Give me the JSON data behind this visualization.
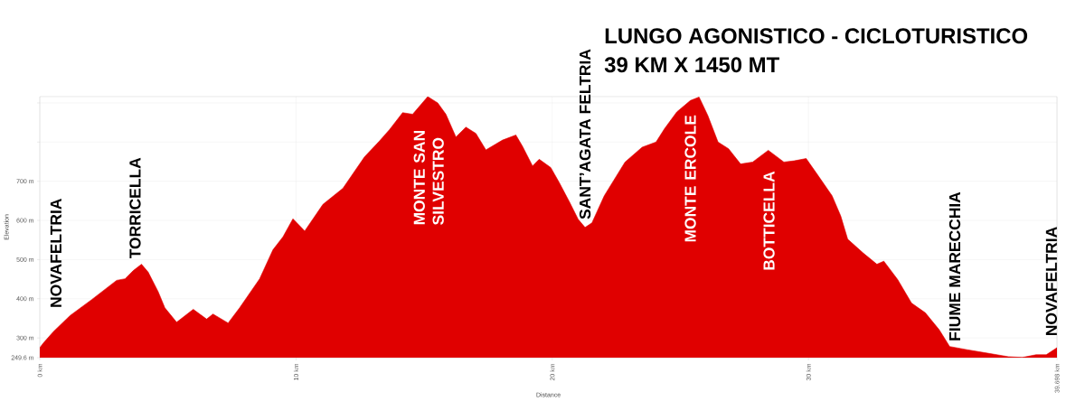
{
  "chart_data": {
    "type": "area",
    "title": "LUNGO AGONISTICO - CICLOTURISTICO",
    "subtitle": "39 KM X 1450 MT",
    "xlabel": "Distance",
    "ylabel": "Elevation",
    "color": "#e00000",
    "grid": true,
    "x": [
      0,
      0.14,
      0.53,
      1.18,
      2.03,
      3.0,
      3.33,
      3.65,
      3.97,
      4.23,
      4.62,
      4.88,
      5.34,
      5.99,
      6.51,
      6.76,
      7.35,
      7.8,
      8.58,
      9.1,
      9.49,
      9.88,
      10.34,
      11.05,
      11.83,
      12.67,
      13.26,
      13.65,
      14.16,
      14.55,
      15.14,
      15.53,
      15.85,
      16.24,
      16.63,
      17.02,
      17.41,
      18.06,
      18.58,
      18.84,
      19.23,
      19.49,
      19.94,
      20.27,
      20.68,
      21.01,
      21.28,
      21.55,
      22.03,
      22.84,
      23.51,
      24.05,
      24.38,
      24.86,
      25.39,
      25.73,
      26.07,
      26.47,
      26.88,
      27.35,
      27.82,
      28.43,
      29.04,
      29.44,
      29.91,
      30.38,
      30.92,
      31.26,
      31.53,
      32.13,
      32.67,
      32.94,
      33.48,
      34.02,
      34.56,
      35.1,
      35.51,
      36.18,
      36.99,
      37.8,
      38.34,
      38.88,
      39.28,
      39.698
    ],
    "values": [
      275,
      287,
      316,
      357,
      398,
      447,
      451,
      472,
      488,
      468,
      418,
      377,
      340,
      373,
      348,
      361,
      338,
      377,
      451,
      525,
      558,
      604,
      573,
      641,
      682,
      762,
      803,
      832,
      875,
      871,
      916,
      900,
      871,
      813,
      838,
      822,
      780,
      805,
      818,
      789,
      739,
      756,
      735,
      697,
      646,
      603,
      582,
      594,
      663,
      749,
      787,
      800,
      834,
      877,
      906,
      915,
      868,
      800,
      783,
      744,
      749,
      779,
      749,
      752,
      758,
      714,
      663,
      611,
      552,
      517,
      488,
      496,
      449,
      389,
      364,
      321,
      278,
      270,
      261,
      252,
      250,
      257,
      257,
      275
    ],
    "xlim": [
      0,
      39.698
    ],
    "ylim": [
      249.6,
      916
    ],
    "xticks": [
      {
        "value": 0,
        "label": "0 km"
      },
      {
        "value": 10,
        "label": "10 km"
      },
      {
        "value": 20,
        "label": "20 km"
      },
      {
        "value": 30,
        "label": "30 km"
      },
      {
        "value": 39.698,
        "label": "39.698 km"
      }
    ],
    "yticks": [
      {
        "value": 249.6,
        "label": "249.6 m"
      },
      {
        "value": 300,
        "label": "300 m"
      },
      {
        "value": 400,
        "label": "400 m"
      },
      {
        "value": 500,
        "label": "500 m"
      },
      {
        "value": 600,
        "label": "600 m"
      },
      {
        "value": 700,
        "label": "700 m"
      },
      {
        "value": 800,
        "label": null
      },
      {
        "value": 900,
        "label": null
      }
    ],
    "annotations": [
      "NOVAFELTRIA",
      "TORRICELLA",
      "MONTE SAN SILVESTRO",
      "SANT’AGATA FELTRIA",
      "MONTE ERCOLE",
      "BOTTICELLA",
      "FIUME MARECCHIA",
      "NOVAFELTRIA"
    ]
  }
}
